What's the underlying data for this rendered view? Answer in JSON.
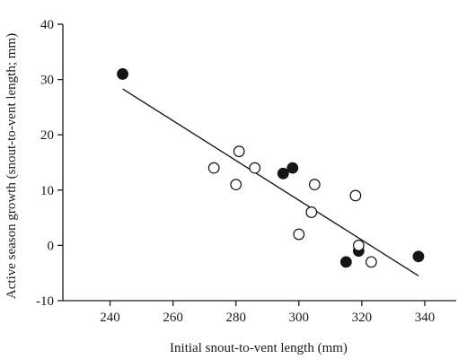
{
  "chart_data": {
    "type": "scatter",
    "title": "",
    "xlabel": "Initial snout-to-vent length (mm)",
    "ylabel": "Active season growth (snout-to-vent length; mm)",
    "xlim": [
      225,
      350
    ],
    "ylim": [
      -10,
      40
    ],
    "xticks": [
      240,
      260,
      280,
      300,
      320,
      340
    ],
    "yticks": [
      -10,
      0,
      10,
      20,
      30,
      40
    ],
    "grid": false,
    "legend": "none",
    "series": [
      {
        "marker": "filled-circle",
        "points": [
          {
            "x": 244,
            "y": 31
          },
          {
            "x": 295,
            "y": 13
          },
          {
            "x": 298,
            "y": 14
          },
          {
            "x": 315,
            "y": -3
          },
          {
            "x": 319,
            "y": -1
          },
          {
            "x": 338,
            "y": -2
          }
        ]
      },
      {
        "marker": "open-circle",
        "points": [
          {
            "x": 273,
            "y": 14
          },
          {
            "x": 280,
            "y": 11
          },
          {
            "x": 281,
            "y": 17
          },
          {
            "x": 286,
            "y": 14
          },
          {
            "x": 300,
            "y": 2
          },
          {
            "x": 304,
            "y": 6
          },
          {
            "x": 305,
            "y": 11
          },
          {
            "x": 318,
            "y": 9
          },
          {
            "x": 319,
            "y": 0
          },
          {
            "x": 323,
            "y": -3
          }
        ]
      }
    ],
    "trendline": {
      "x": [
        244,
        338
      ],
      "y": [
        28.3,
        -5.5
      ]
    }
  }
}
